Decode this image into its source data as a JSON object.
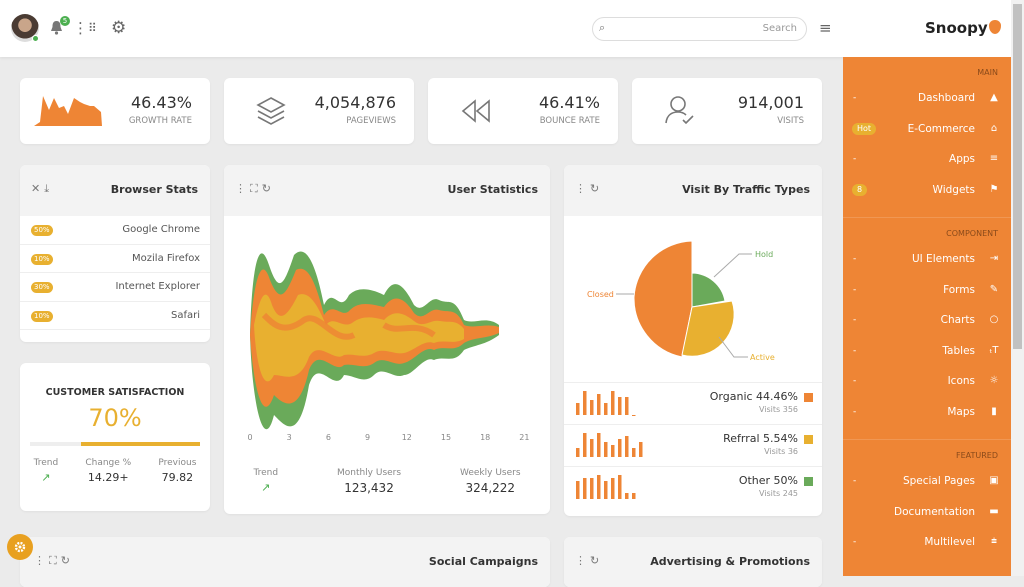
{
  "header": {
    "notification_count": "5",
    "search_placeholder": "Search",
    "brand": "Snoopy"
  },
  "stats": [
    {
      "value": "46.43%",
      "label": "GROWTH RATE",
      "icon": "area-chart-icon"
    },
    {
      "value": "4,054,876",
      "label": "PAGEVIEWS",
      "icon": "layers-icon"
    },
    {
      "value": "46.41%",
      "label": "BOUNCE RATE",
      "icon": "rewind-icon"
    },
    {
      "value": "914,001",
      "label": "VISITS",
      "icon": "user-check-icon"
    }
  ],
  "browser_stats": {
    "title": "Browser Stats",
    "rows": [
      {
        "pct": "50%",
        "name": "Google Chrome"
      },
      {
        "pct": "10%",
        "name": "Mozila Firefox"
      },
      {
        "pct": "30%",
        "name": "Internet Explorer"
      },
      {
        "pct": "10%",
        "name": "Safari"
      }
    ]
  },
  "satisfaction": {
    "title": "CUSTOMER SATISFACTION",
    "value": "70%",
    "progress": 70,
    "trend_label": "Trend",
    "change_label": "Change %",
    "change": "14.29+",
    "previous_label": "Previous",
    "previous": "79.82"
  },
  "user_stats": {
    "title": "User Statistics",
    "x_ticks": [
      "0",
      "3",
      "6",
      "9",
      "12",
      "15",
      "18",
      "21"
    ],
    "trend_label": "Trend",
    "monthly_label": "Monthly Users",
    "monthly": "123,432",
    "weekly_label": "Weekly Users",
    "weekly": "324,222",
    "colors": [
      "#6aaa5a",
      "#ee8535",
      "#e8b030"
    ]
  },
  "traffic": {
    "title": "Visit By Traffic Types",
    "pie_labels": {
      "closed": "Closed",
      "hold": "Hold",
      "active": "Active"
    },
    "rows": [
      {
        "name": "Organic 44.46%",
        "visits": "Visits 356",
        "color": "#ee8535",
        "bars": [
          4,
          8,
          5,
          7,
          4,
          8,
          6,
          6,
          0
        ]
      },
      {
        "name": "Refrral 5.54%",
        "visits": "Visits 36",
        "color": "#e8b030",
        "bars": [
          3,
          8,
          6,
          8,
          5,
          4,
          6,
          7,
          3,
          5
        ]
      },
      {
        "name": "Other 50%",
        "visits": "Visits 245",
        "color": "#6aaa5a",
        "bars": [
          6,
          7,
          7,
          8,
          6,
          7,
          8,
          2,
          2
        ]
      }
    ]
  },
  "bottom": {
    "social": "Social Campaigns",
    "ads": "Advertising & Promotions"
  },
  "sidebar": {
    "sections": [
      {
        "title": "MAIN",
        "items": [
          {
            "label": "Dashboard",
            "icon": "▲",
            "badge": ""
          },
          {
            "label": "E-Commerce",
            "icon": "⌂",
            "badge": "Hot"
          },
          {
            "label": "Apps",
            "icon": "≡",
            "badge": ""
          },
          {
            "label": "Widgets",
            "icon": "⚑",
            "badge": "8"
          }
        ]
      },
      {
        "title": "COMPONENT",
        "items": [
          {
            "label": "UI Elements",
            "icon": "⇥",
            "badge": ""
          },
          {
            "label": "Forms",
            "icon": "✎",
            "badge": ""
          },
          {
            "label": "Charts",
            "icon": "○",
            "badge": ""
          },
          {
            "label": "Tables",
            "icon": "ₜT",
            "badge": ""
          },
          {
            "label": "Icons",
            "icon": "☼",
            "badge": ""
          },
          {
            "label": "Maps",
            "icon": "▮",
            "badge": ""
          }
        ]
      },
      {
        "title": "FEATURED",
        "items": [
          {
            "label": "Special Pages",
            "icon": "▣",
            "badge": ""
          },
          {
            "label": "Documentation",
            "icon": "▬",
            "badge": ""
          },
          {
            "label": "Multilevel",
            "icon": "⩧",
            "badge": ""
          }
        ]
      }
    ]
  }
}
